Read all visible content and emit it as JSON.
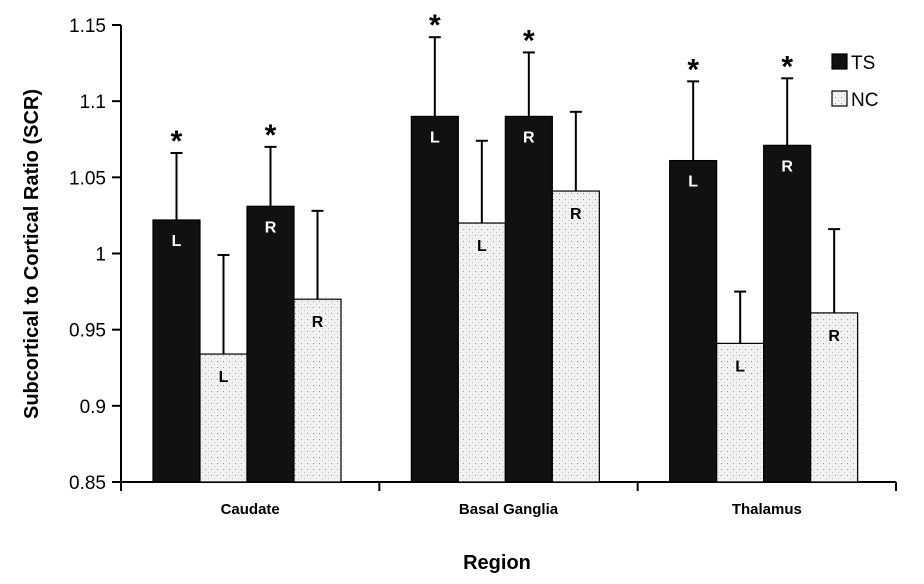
{
  "chart_data": {
    "type": "bar",
    "xlabel": "Region",
    "ylabel": "Subcortical to Cortical Ratio (SCR)",
    "ylim": [
      0.85,
      1.15
    ],
    "yticks": [
      "0.85",
      "0.9",
      "0.95",
      "1",
      "1.05",
      "1.1",
      "1.15"
    ],
    "categories": [
      "Caudate",
      "Basal Ganglia",
      "Thalamus"
    ],
    "legend_position": "top-right",
    "series_colors": {
      "TS": "#111111",
      "NC": "#e8e8e8"
    },
    "bars": [
      {
        "category": "Caudate",
        "group": "TS",
        "side": "L",
        "value": 1.022,
        "error": 0.044,
        "star": "*"
      },
      {
        "category": "Caudate",
        "group": "NC",
        "side": "L",
        "value": 0.934,
        "error": 0.065,
        "star": ""
      },
      {
        "category": "Caudate",
        "group": "TS",
        "side": "R",
        "value": 1.031,
        "error": 0.039,
        "star": "*"
      },
      {
        "category": "Caudate",
        "group": "NC",
        "side": "R",
        "value": 0.97,
        "error": 0.058,
        "star": ""
      },
      {
        "category": "Basal Ganglia",
        "group": "TS",
        "side": "L",
        "value": 1.09,
        "error": 0.052,
        "star": "*"
      },
      {
        "category": "Basal Ganglia",
        "group": "NC",
        "side": "L",
        "value": 1.02,
        "error": 0.054,
        "star": ""
      },
      {
        "category": "Basal Ganglia",
        "group": "TS",
        "side": "R",
        "value": 1.09,
        "error": 0.042,
        "star": "*"
      },
      {
        "category": "Basal Ganglia",
        "group": "NC",
        "side": "R",
        "value": 1.041,
        "error": 0.052,
        "star": ""
      },
      {
        "category": "Thalamus",
        "group": "TS",
        "side": "L",
        "value": 1.061,
        "error": 0.052,
        "star": "*"
      },
      {
        "category": "Thalamus",
        "group": "NC",
        "side": "L",
        "value": 0.941,
        "error": 0.034,
        "star": ""
      },
      {
        "category": "Thalamus",
        "group": "TS",
        "side": "R",
        "value": 1.071,
        "error": 0.044,
        "star": "*"
      },
      {
        "category": "Thalamus",
        "group": "NC",
        "side": "R",
        "value": 0.961,
        "error": 0.055,
        "star": ""
      }
    ],
    "legend": [
      {
        "name": "TS",
        "color": "#111111"
      },
      {
        "name": "NC",
        "color": "#e8e8e8"
      }
    ]
  }
}
